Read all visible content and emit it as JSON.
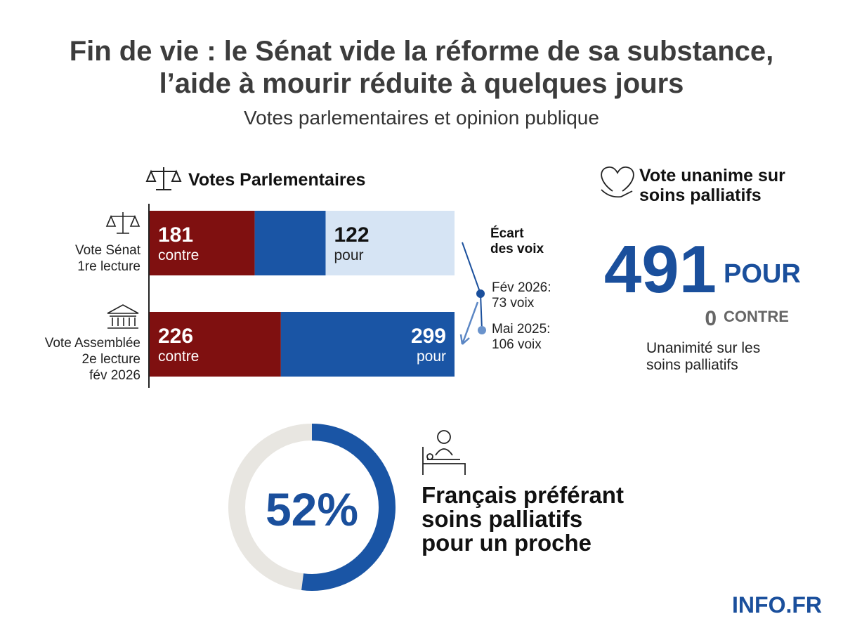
{
  "header": {
    "title_lines": [
      "Fin de vie : le Sénat vide la réforme de sa substance,",
      "l’aide à mourir réduite à quelques jours"
    ],
    "subtitle": "Votes parlementaires et opinion publique"
  },
  "votes": {
    "title": "Votes Parlementaires",
    "rows": [
      {
        "label_lines": [
          "Vote Sénat",
          "1re lecture"
        ],
        "contre": 181,
        "contre_label": "contre",
        "pour": 122,
        "pour_label": "pour"
      },
      {
        "label_lines": [
          "Vote Assemblée",
          "2e lecture",
          "fév 2026"
        ],
        "contre": 226,
        "contre_label": "contre",
        "pour": 299,
        "pour_label": "pour"
      }
    ],
    "gap": {
      "title_lines": [
        "Écart",
        "des voix"
      ],
      "points": [
        {
          "lines": [
            "Fév 2026:",
            "73 voix"
          ]
        },
        {
          "lines": [
            "Mai 2025:",
            "106 voix"
          ]
        }
      ]
    }
  },
  "unanimous": {
    "title_lines": [
      "Vote unanime sur",
      "soins palliatifs"
    ],
    "pour": 491,
    "pour_label": "POUR",
    "contre": 0,
    "contre_label": "CONTRE",
    "note_lines": [
      "Unanimité sur les",
      "soins palliatifs"
    ]
  },
  "opinion": {
    "value": 52,
    "value_label": "52%",
    "caption_lines": [
      "Français préférant",
      "soins palliatifs",
      "pour un proche"
    ]
  },
  "brand": "INFO.FR"
}
